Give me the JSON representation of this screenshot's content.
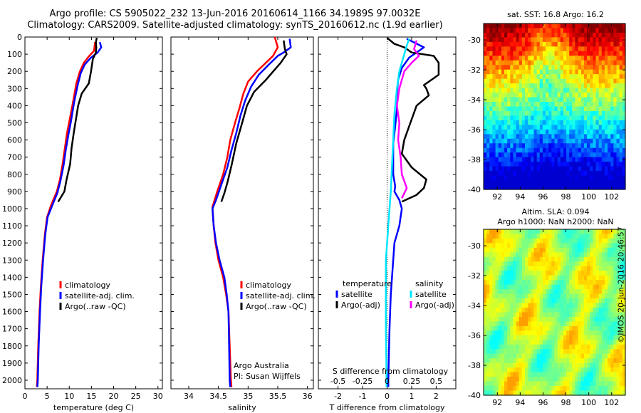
{
  "header": {
    "line1": "Argo profile: CS 5905022_232 13-Jun-2016 20160614_1166 34.1989S 97.0032E",
    "line2": "Climatology: CARS2009. Satellite-adjusted climatology: synTS_20160612.nc (1.9d earlier)"
  },
  "colors": {
    "climatology": "#ff0000",
    "satellite": "#0000ff",
    "argo": "#000000",
    "s_satellite": "#00e5ff",
    "s_argo": "#ff00ff"
  },
  "chart_data": [
    {
      "type": "line",
      "id": "temperature",
      "xlabel": "temperature (deg C)",
      "xlim": [
        0,
        31
      ],
      "ylim": [
        2050,
        0
      ],
      "xticks": [
        0,
        5,
        10,
        15,
        20,
        25,
        30
      ],
      "yticks": [
        0,
        100,
        200,
        300,
        400,
        500,
        600,
        700,
        800,
        900,
        1000,
        1100,
        1200,
        1300,
        1400,
        1500,
        1600,
        1700,
        1800,
        1900,
        2000
      ],
      "legend": [
        "climatology",
        "satellite-adj. clim.",
        "Argo(..raw -QC)"
      ],
      "series": [
        {
          "name": "climatology",
          "color": "#ff0000",
          "points": [
            [
              15.8,
              30
            ],
            [
              15.6,
              80
            ],
            [
              14.5,
              110
            ],
            [
              13.3,
              150
            ],
            [
              12.4,
              200
            ],
            [
              11.6,
              270
            ],
            [
              10.9,
              370
            ],
            [
              10.1,
              480
            ],
            [
              9.5,
              560
            ],
            [
              9.0,
              650
            ],
            [
              8.5,
              740
            ],
            [
              7.9,
              830
            ],
            [
              7.2,
              900
            ],
            [
              5.9,
              980
            ],
            [
              5.0,
              1050
            ],
            [
              4.5,
              1150
            ],
            [
              4.0,
              1300
            ],
            [
              3.6,
              1450
            ],
            [
              3.3,
              1600
            ],
            [
              3.0,
              1800
            ],
            [
              2.8,
              2000
            ],
            [
              2.7,
              2040
            ]
          ]
        },
        {
          "name": "satellite-adj. clim.",
          "color": "#0000ff",
          "points": [
            [
              16.9,
              30
            ],
            [
              17.2,
              60
            ],
            [
              16.4,
              90
            ],
            [
              14.9,
              120
            ],
            [
              13.5,
              160
            ],
            [
              12.6,
              210
            ],
            [
              11.9,
              280
            ],
            [
              11.1,
              380
            ],
            [
              10.4,
              490
            ],
            [
              9.8,
              570
            ],
            [
              9.2,
              660
            ],
            [
              8.7,
              750
            ],
            [
              8.0,
              840
            ],
            [
              7.3,
              910
            ],
            [
              6.1,
              985
            ],
            [
              5.1,
              1050
            ],
            [
              4.6,
              1150
            ],
            [
              4.1,
              1300
            ],
            [
              3.7,
              1450
            ],
            [
              3.4,
              1600
            ],
            [
              3.1,
              1800
            ],
            [
              2.9,
              2000
            ],
            [
              2.8,
              2040
            ]
          ]
        },
        {
          "name": "Argo(..raw -QC)",
          "color": "#000000",
          "points": [
            [
              16.2,
              5
            ],
            [
              16.0,
              30
            ],
            [
              16.1,
              60
            ],
            [
              16.0,
              90
            ],
            [
              15.3,
              130
            ],
            [
              14.9,
              200
            ],
            [
              14.4,
              270
            ],
            [
              12.8,
              330
            ],
            [
              12.0,
              400
            ],
            [
              11.5,
              480
            ],
            [
              11.0,
              560
            ],
            [
              10.5,
              650
            ],
            [
              10.2,
              740
            ],
            [
              9.4,
              830
            ],
            [
              8.9,
              900
            ],
            [
              7.5,
              960
            ]
          ]
        }
      ]
    },
    {
      "type": "line",
      "id": "salinity",
      "xlabel": "salinity",
      "xlim": [
        33.7,
        36.1
      ],
      "ylim": [
        2050,
        0
      ],
      "xticks": [
        34,
        34.5,
        35,
        35.5,
        36
      ],
      "legend": [
        "climatology",
        "satellite-adj. clim.",
        "Argo(..raw -QC)"
      ],
      "series": [
        {
          "name": "climatology",
          "color": "#ff0000",
          "points": [
            [
              35.45,
              0
            ],
            [
              35.5,
              60
            ],
            [
              35.42,
              110
            ],
            [
              35.3,
              150
            ],
            [
              35.15,
              200
            ],
            [
              35.0,
              260
            ],
            [
              34.92,
              330
            ],
            [
              34.85,
              420
            ],
            [
              34.78,
              500
            ],
            [
              34.7,
              600
            ],
            [
              34.65,
              700
            ],
            [
              34.58,
              800
            ],
            [
              34.48,
              900
            ],
            [
              34.4,
              990
            ],
            [
              34.42,
              1100
            ],
            [
              34.45,
              1200
            ],
            [
              34.5,
              1300
            ],
            [
              34.58,
              1400
            ],
            [
              34.63,
              1500
            ],
            [
              34.67,
              1600
            ],
            [
              34.69,
              1800
            ],
            [
              34.71,
              2000
            ],
            [
              34.72,
              2040
            ]
          ]
        },
        {
          "name": "satellite-adj. clim.",
          "color": "#0000ff",
          "points": [
            [
              35.7,
              10
            ],
            [
              35.72,
              60
            ],
            [
              35.6,
              90
            ],
            [
              35.5,
              110
            ],
            [
              35.35,
              160
            ],
            [
              35.18,
              220
            ],
            [
              35.05,
              290
            ],
            [
              34.95,
              370
            ],
            [
              34.87,
              460
            ],
            [
              34.8,
              560
            ],
            [
              34.72,
              660
            ],
            [
              34.65,
              760
            ],
            [
              34.55,
              860
            ],
            [
              34.46,
              950
            ],
            [
              34.4,
              1000
            ],
            [
              34.42,
              1100
            ],
            [
              34.46,
              1200
            ],
            [
              34.52,
              1300
            ],
            [
              34.6,
              1400
            ],
            [
              34.64,
              1500
            ],
            [
              34.67,
              1600
            ],
            [
              34.68,
              1800
            ],
            [
              34.69,
              2000
            ],
            [
              34.7,
              2040
            ]
          ]
        },
        {
          "name": "Argo(..raw -QC)",
          "color": "#000000",
          "points": [
            [
              35.6,
              20
            ],
            [
              35.62,
              70
            ],
            [
              35.65,
              100
            ],
            [
              35.55,
              150
            ],
            [
              35.3,
              250
            ],
            [
              35.1,
              320
            ],
            [
              34.98,
              400
            ],
            [
              34.9,
              500
            ],
            [
              34.8,
              620
            ],
            [
              34.72,
              750
            ],
            [
              34.65,
              850
            ],
            [
              34.6,
              910
            ],
            [
              34.55,
              960
            ]
          ]
        }
      ],
      "note_line1": "Argo Australia",
      "note_line2": "PI: Susan Wijffels"
    },
    {
      "type": "line",
      "id": "difference",
      "xlabel": "T difference from climatology",
      "xlabel2": "S difference from climatology",
      "xlim": [
        -2.8,
        2.8
      ],
      "ylim": [
        2050,
        0
      ],
      "xticks": [
        -2,
        -1,
        0,
        1,
        2
      ],
      "xticks_s": [
        "-0.5",
        "-0.25",
        "0",
        "0.25",
        "0.5"
      ],
      "legend_temperature_title": "temperature",
      "legend_salinity_title": "salinity",
      "legend": [
        "satellite",
        "Argo(-adj)",
        "satellite",
        "Argo(-adj)"
      ],
      "series": [
        {
          "name": "temperature satellite",
          "color": "#0000ff",
          "points": [
            [
              0.8,
              10
            ],
            [
              1.5,
              60
            ],
            [
              0.9,
              120
            ],
            [
              0.6,
              180
            ],
            [
              0.45,
              250
            ],
            [
              0.4,
              330
            ],
            [
              0.4,
              420
            ],
            [
              0.33,
              520
            ],
            [
              0.25,
              620
            ],
            [
              0.25,
              720
            ],
            [
              0.25,
              800
            ],
            [
              0.33,
              870
            ],
            [
              0.3,
              900
            ],
            [
              0.5,
              950
            ],
            [
              0.6,
              1000
            ],
            [
              0.5,
              1100
            ],
            [
              0.3,
              1200
            ],
            [
              0.25,
              1300
            ],
            [
              0.15,
              1500
            ],
            [
              0.1,
              1700
            ],
            [
              0.05,
              2000
            ],
            [
              0.05,
              2040
            ]
          ]
        },
        {
          "name": "temperature Argo(-adj)",
          "color": "#000000",
          "points": [
            [
              0.0,
              5
            ],
            [
              0.3,
              40
            ],
            [
              0.7,
              60
            ],
            [
              1.0,
              90
            ],
            [
              1.9,
              110
            ],
            [
              2.1,
              150
            ],
            [
              2.1,
              220
            ],
            [
              1.5,
              280
            ],
            [
              1.6,
              300
            ],
            [
              1.7,
              340
            ],
            [
              1.2,
              400
            ],
            [
              0.95,
              500
            ],
            [
              0.7,
              600
            ],
            [
              0.6,
              680
            ],
            [
              1.0,
              760
            ],
            [
              1.6,
              830
            ],
            [
              1.5,
              880
            ],
            [
              1.2,
              920
            ],
            [
              0.6,
              960
            ]
          ]
        },
        {
          "name": "salinity satellite",
          "color": "#00e5ff",
          "points": [
            [
              0.9,
              10
            ],
            [
              0.8,
              50
            ],
            [
              0.7,
              100
            ],
            [
              0.5,
              200
            ],
            [
              0.4,
              300
            ],
            [
              0.3,
              450
            ],
            [
              0.25,
              600
            ],
            [
              0.2,
              750
            ],
            [
              0.15,
              900
            ],
            [
              0.1,
              1000
            ],
            [
              0.05,
              1100
            ],
            [
              0.0,
              1200
            ],
            [
              -0.05,
              1300
            ],
            [
              -0.05,
              1500
            ],
            [
              -0.05,
              1700
            ],
            [
              -0.03,
              1900
            ],
            [
              -0.02,
              2040
            ]
          ]
        },
        {
          "name": "salinity Argo(-adj)",
          "color": "#ff00ff",
          "points": [
            [
              1.2,
              20
            ],
            [
              1.1,
              70
            ],
            [
              1.3,
              110
            ],
            [
              1.0,
              150
            ],
            [
              0.7,
              200
            ],
            [
              0.5,
              300
            ],
            [
              0.4,
              400
            ],
            [
              0.5,
              500
            ],
            [
              0.45,
              600
            ],
            [
              0.55,
              700
            ],
            [
              0.6,
              800
            ],
            [
              0.8,
              880
            ],
            [
              0.6,
              940
            ]
          ]
        }
      ]
    },
    {
      "type": "heatmap",
      "id": "sst_map",
      "title": "sat. SST: 16.8 Argo: 16.2",
      "xticks": [
        "92",
        "94",
        "96",
        "98",
        "100",
        "102"
      ],
      "yticks": [
        "-30",
        "-32",
        "-34",
        "-36",
        "-38",
        "-40"
      ]
    },
    {
      "type": "heatmap",
      "id": "sla_map",
      "title_line1": "Altim. SLA: 0.094",
      "title_line2": "Argo h1000: NaN h2000: NaN",
      "xticks": [
        "92",
        "94",
        "96",
        "98",
        "100",
        "102"
      ],
      "yticks": [
        "-30",
        "-32",
        "-34",
        "-36",
        "-38",
        "-40"
      ]
    }
  ],
  "footer": {
    "stamp": "©IMOS 20-Jun-2016 20:46:57"
  }
}
